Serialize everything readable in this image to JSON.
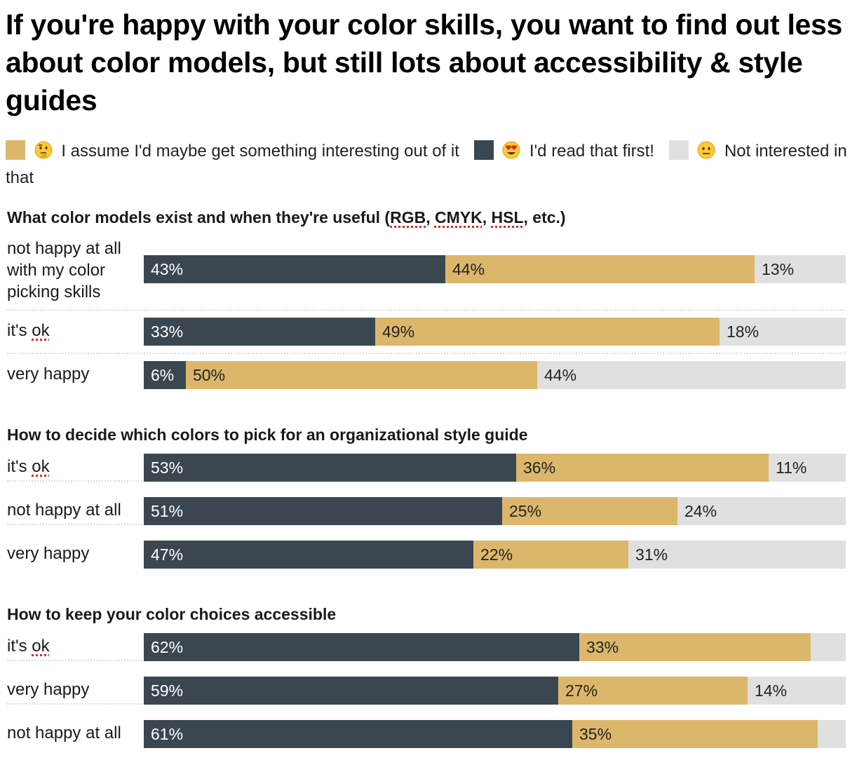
{
  "title": "If you're happy with your color skills, you want to find out less about color models, but still lots about accessibility & style guides",
  "colors": {
    "read_first": "#3a4750",
    "maybe": "#dcb76b",
    "not_interested": "#e0e0e0",
    "text_dark": "#ffffff",
    "text_light": "#222222"
  },
  "legend": [
    {
      "key": "maybe",
      "emoji": "thinking-face",
      "label": "I assume I'd maybe get something interesting out of it"
    },
    {
      "key": "read_first",
      "emoji": "heart-eyes-face",
      "label": "I'd read that first!"
    },
    {
      "key": "not_interested",
      "emoji": "neutral-face",
      "label": "Not interested in that"
    }
  ],
  "chart_data": {
    "type": "bar",
    "stacked": true,
    "orientation": "horizontal",
    "series_order": [
      "read_first",
      "maybe",
      "not_interested"
    ],
    "groups": [
      {
        "title": "What color models exist and when they're useful (RGB, CMYK, HSL, etc.)",
        "title_parts": [
          {
            "text": "What color models exist and when they're useful (",
            "spell": false
          },
          {
            "text": "RGB",
            "spell": true
          },
          {
            "text": ", ",
            "spell": false
          },
          {
            "text": "CMYK",
            "spell": true
          },
          {
            "text": ", ",
            "spell": false
          },
          {
            "text": "HSL",
            "spell": true
          },
          {
            "text": ", etc.)",
            "spell": false
          }
        ],
        "rows": [
          {
            "label": "not happy at all with my color picking skills",
            "values": [
              43,
              44,
              13
            ],
            "labels": [
              "43%",
              "44%",
              "13%"
            ]
          },
          {
            "label": "it's ok",
            "values": [
              33,
              49,
              18
            ],
            "labels": [
              "33%",
              "49%",
              "18%"
            ]
          },
          {
            "label": "very happy",
            "values": [
              6,
              50,
              44
            ],
            "labels": [
              "6%",
              "50%",
              "44%"
            ]
          }
        ]
      },
      {
        "title": "How to decide which colors to pick for an organizational style guide",
        "title_parts": [
          {
            "text": "How to decide which colors to pick for an organizational style guide",
            "spell": false
          }
        ],
        "rows": [
          {
            "label": "it's ok",
            "values": [
              53,
              36,
              11
            ],
            "labels": [
              "53%",
              "36%",
              "11%"
            ]
          },
          {
            "label": "not happy at all",
            "values": [
              51,
              25,
              24
            ],
            "labels": [
              "51%",
              "25%",
              "24%"
            ]
          },
          {
            "label": "very happy",
            "values": [
              47,
              22,
              31
            ],
            "labels": [
              "47%",
              "22%",
              "31%"
            ]
          }
        ]
      },
      {
        "title": "How to keep your color choices accessible",
        "title_parts": [
          {
            "text": "How to keep your color choices accessible",
            "spell": false
          }
        ],
        "rows": [
          {
            "label": "it's ok",
            "values": [
              62,
              33,
              5
            ],
            "labels": [
              "62%",
              "33%",
              ""
            ]
          },
          {
            "label": "very happy",
            "values": [
              59,
              27,
              14
            ],
            "labels": [
              "59%",
              "27%",
              "14%"
            ]
          },
          {
            "label": "not happy at all",
            "values": [
              61,
              35,
              4
            ],
            "labels": [
              "61%",
              "35%",
              ""
            ]
          }
        ]
      }
    ]
  }
}
